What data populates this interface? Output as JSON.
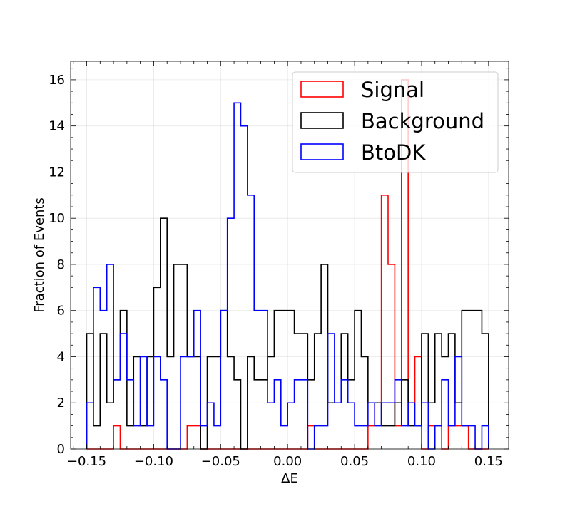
{
  "chart_data": {
    "type": "histogram-step",
    "xlabel": "ΔE",
    "ylabel": "Fraction of Events",
    "xlim": [
      -0.162,
      0.165
    ],
    "ylim": [
      0,
      16.8
    ],
    "grid": true,
    "legend_position": "top-right",
    "bin_edges_start": -0.15,
    "bin_width": 0.005,
    "bin_count": 60,
    "xticks": [
      -0.15,
      -0.1,
      -0.05,
      0.0,
      0.05,
      0.1,
      0.15
    ],
    "xtick_labels": [
      "−0.15",
      "−0.10",
      "−0.05",
      "0.00",
      "0.05",
      "0.10",
      "0.15"
    ],
    "yticks": [
      0,
      2,
      4,
      6,
      8,
      10,
      12,
      14,
      16
    ],
    "ytick_labels": [
      "0",
      "2",
      "4",
      "6",
      "8",
      "10",
      "12",
      "14",
      "16"
    ],
    "series": [
      {
        "name": "Signal",
        "color": "#ff0000",
        "values": [
          0,
          0,
          0,
          0,
          1,
          0,
          0,
          0,
          0,
          0,
          0,
          0,
          0,
          0,
          0,
          1,
          1,
          0,
          0,
          0,
          0,
          0,
          0,
          0,
          0,
          0,
          0,
          0,
          0,
          0,
          0,
          0,
          0,
          1,
          0,
          0,
          0,
          0,
          0,
          0,
          0,
          0,
          1,
          2,
          11,
          8,
          1,
          16,
          2,
          4,
          0,
          1,
          1,
          0,
          1,
          1,
          1,
          0,
          0,
          0
        ]
      },
      {
        "name": "Background",
        "color": "#000000",
        "values": [
          5,
          1,
          5,
          2,
          3,
          6,
          1,
          4,
          1,
          4,
          7,
          10,
          4,
          8,
          8,
          4,
          4,
          0,
          4,
          4,
          6,
          4,
          3,
          0,
          4,
          3,
          3,
          4,
          6,
          6,
          6,
          5,
          5,
          3,
          5,
          8,
          2,
          2,
          5,
          3,
          6,
          4,
          2,
          2,
          1,
          1,
          2,
          3,
          1,
          1,
          5,
          2,
          5,
          4,
          5,
          2,
          6,
          6,
          6,
          5
        ]
      },
      {
        "name": "BtoDK",
        "color": "#0000ff",
        "values": [
          2,
          7,
          6,
          8,
          3,
          5,
          3,
          1,
          4,
          1,
          4,
          3,
          0,
          0,
          4,
          4,
          6,
          1,
          2,
          1,
          6,
          10,
          15,
          14,
          11,
          6,
          6,
          2,
          3,
          1,
          2,
          3,
          3,
          0,
          1,
          1,
          5,
          2,
          3,
          2,
          1,
          1,
          2,
          1,
          2,
          2,
          3,
          1,
          2,
          1,
          2,
          0,
          1,
          3,
          1,
          4,
          1,
          1,
          0,
          1
        ]
      }
    ]
  }
}
